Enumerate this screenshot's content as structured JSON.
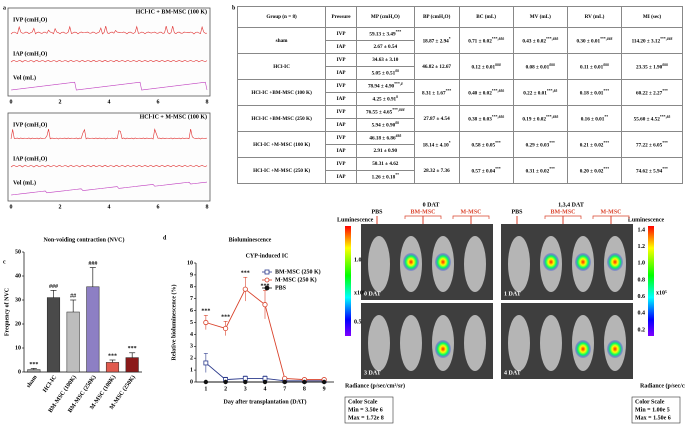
{
  "panel_a": {
    "letter": "a",
    "traces": [
      {
        "title": "HCl-IC + BM-MSC (100 K)",
        "labels": [
          "IVP (cmH₂O)",
          "IAP (cmH₂O)",
          "Vol (mL)"
        ]
      },
      {
        "title": "HCl-IC + M-MSC (100 K)",
        "labels": [
          "IVP (cmH₂O)",
          "IAP (cmH₂O)",
          "Vol (mL)"
        ]
      }
    ],
    "xticks": [
      0,
      2,
      4,
      6,
      8
    ]
  },
  "panel_b": {
    "letter": "b",
    "table": {
      "header": [
        "Group (n = 8)",
        "Pressure",
        "MP (cmH₂O)",
        "BP (cmH₂O)",
        "BC (mL)",
        "MV (mL)",
        "RV (mL)",
        "MI (sec)"
      ],
      "groups": [
        {
          "name": "sham",
          "rows": [
            {
              "pressure": "IVP",
              "mp": {
                "v": "59.13 ± 3.49",
                "sup": "***"
              }
            },
            {
              "pressure": "IAP",
              "mp": "2.67 ± 0.54"
            }
          ],
          "shared": [
            {
              "v": "18.87 ± 2.94",
              "sup": "*"
            },
            {
              "v": "0.71 ± 0.02",
              "sup": "***,###"
            },
            {
              "v": "0.43 ± 0.02",
              "sup": "***,###"
            },
            {
              "v": "0.30 ± 0.01",
              "sup": "***,###"
            },
            {
              "v": "114.20 ± 3.12",
              "sup": "***,###"
            }
          ]
        },
        {
          "name": "HCl-IC",
          "rows": [
            {
              "pressure": "IVP",
              "mp": "34.63 ± 3.10"
            },
            {
              "pressure": "IAP",
              "mp": {
                "v": "5.05 ± 0.51",
                "sup": "##"
              }
            }
          ],
          "shared": [
            "46.82 ± 12.67",
            {
              "v": "0.12 ± 0.01",
              "sup": "###"
            },
            {
              "v": "0.08 ± 0.01",
              "sup": "###"
            },
            {
              "v": "0.11 ± 0.01",
              "sup": "###"
            },
            {
              "v": "23.35 ± 1.90",
              "sup": "###"
            }
          ]
        },
        {
          "name": "HCl-IC +BM-MSC (100 K)",
          "rows": [
            {
              "pressure": "IVP",
              "mp": {
                "v": "78.94 ± 4.90",
                "sup": "***,#"
              }
            },
            {
              "pressure": "IAP",
              "mp": {
                "v": "4.25 ± 0.91",
                "sup": "#"
              }
            }
          ],
          "shared": [
            {
              "v": "8.31 ± 1.67",
              "sup": "***"
            },
            {
              "v": "0.40 ± 0.02",
              "sup": "***,###"
            },
            {
              "v": "0.22 ± 0.01",
              "sup": "***,##"
            },
            {
              "v": "0.18 ± 0.01",
              "sup": "***"
            },
            {
              "v": "60.22 ± 2.27",
              "sup": "***"
            }
          ]
        },
        {
          "name": "HCl-IC +BM-MSC (250 K)",
          "rows": [
            {
              "pressure": "IVP",
              "mp": {
                "v": "76.55 ± 4.65",
                "sup": "***,###"
              }
            },
            {
              "pressure": "IAP",
              "mp": {
                "v": "5.94 ± 0.90",
                "sup": "##"
              }
            }
          ],
          "shared": [
            "27.87 ± 4.54",
            {
              "v": "0.38 ± 0.03",
              "sup": "***,###"
            },
            {
              "v": "0.19 ± 0.02",
              "sup": "***,###"
            },
            {
              "v": "0.16 ± 0.01",
              "sup": "**"
            },
            {
              "v": "55.60 ± 4.52",
              "sup": "***,##"
            }
          ]
        },
        {
          "name": "HCl-IC +M-MSC (100 K)",
          "rows": [
            {
              "pressure": "IVP",
              "mp": {
                "v": "46.18 ± 6.86",
                "sup": "###"
              }
            },
            {
              "pressure": "IAP",
              "mp": "2.91 ± 0.90"
            }
          ],
          "shared": [
            {
              "v": "18.14 ± 4.10",
              "sup": "*"
            },
            {
              "v": "0.58 ± 0.05",
              "sup": "***"
            },
            {
              "v": "0.29 ± 0.03",
              "sup": "***"
            },
            {
              "v": "0.21 ± 0.02",
              "sup": "***"
            },
            {
              "v": "77.22 ± 6.05",
              "sup": "***"
            }
          ]
        },
        {
          "name": "HCl-IC +M-MSC (250 K)",
          "rows": [
            {
              "pressure": "IVP",
              "mp": "50.31 ± 4.62"
            },
            {
              "pressure": "IAP",
              "mp": {
                "v": "1.26 ± 0.18",
                "sup": "**"
              }
            }
          ],
          "shared": [
            "28.32 ± 7.36",
            {
              "v": "0.57 ± 0.04",
              "sup": "***"
            },
            {
              "v": "0.31 ± 0.02",
              "sup": "***"
            },
            {
              "v": "0.20 ± 0.02",
              "sup": "***"
            },
            {
              "v": "74.62 ± 5.94",
              "sup": "***"
            }
          ]
        }
      ]
    }
  },
  "chart_data": [
    {
      "type": "bar",
      "panel_label": "c",
      "title": "Non-voiding contraction (NVC)",
      "y_label": "Frequency of NVC",
      "categories": [
        "sham",
        "HCl-IC",
        "BM-MSC (100K)",
        "BM-MSC (250K)",
        "M-MSC (100K)",
        "M-MSC (250K)"
      ],
      "values": [
        1,
        31,
        25,
        35.5,
        4,
        6
      ],
      "errors": [
        0.5,
        3,
        5,
        8,
        1,
        2
      ],
      "significance": [
        "***",
        "###",
        "##",
        "###",
        "***",
        "***"
      ],
      "colors": [
        "#9e9e9e",
        "#4a4a4a",
        "#bdbdbd",
        "#8d7fc4",
        "#e05a4e",
        "#8b1a1a"
      ],
      "ylim": [
        0,
        50
      ],
      "yticks": [
        0,
        10,
        20,
        30,
        40,
        50
      ]
    },
    {
      "type": "line",
      "panel_label": "d",
      "title": "Bioluminescence",
      "subtitle": "CYP-induced IC",
      "x_label": "Day after transplantation (DAT)",
      "y_label": "Relative bioluminescence (%)",
      "categories": [
        "1",
        "2",
        "3",
        "4",
        "7",
        "8",
        "9"
      ],
      "series": [
        {
          "name": "BM-MSC (250 K)",
          "color": "#2b3a8c",
          "marker": "square",
          "values": [
            1.6,
            0.2,
            0.3,
            0.3,
            0.1,
            0.1,
            0.1
          ],
          "errors": [
            0.8,
            0.2,
            0.2,
            0.2,
            0.1,
            0.1,
            0.1
          ]
        },
        {
          "name": "M-MSC (250 K)",
          "color": "#d9422b",
          "marker": "circle",
          "values": [
            5.0,
            4.5,
            7.8,
            6.5,
            0.3,
            0.2,
            0.2
          ],
          "errors": [
            0.6,
            0.6,
            1.0,
            1.2,
            0.1,
            0.1,
            0.1
          ]
        },
        {
          "name": "PBS",
          "color": "#111111",
          "marker": "dot",
          "values": [
            0,
            0,
            0,
            0,
            0,
            0,
            0
          ]
        }
      ],
      "significance": [
        "***",
        "***",
        "***",
        "***",
        null,
        null,
        null
      ],
      "legend": "top-right",
      "ylim": [
        0,
        10
      ],
      "yticks": [
        0,
        1,
        2,
        3,
        4,
        5,
        6,
        7,
        8,
        9,
        10
      ]
    }
  ],
  "panel_e": {
    "left": {
      "title": "0 DAT",
      "scale_title": "Luminescence",
      "groups": [
        "PBS",
        "BM-MSC",
        "M-MSC"
      ],
      "image_labels": [
        "0 DAT",
        "3 DAT"
      ],
      "colorbar_ticks": [
        "1.0",
        "0.5"
      ],
      "multiplier": "x10⁶",
      "radiance": "Radiance (p/sec/cm²/sr)",
      "color_scale": [
        "Color Scale",
        "Min = 3.50e 6",
        "Max = 1.72e 8"
      ]
    },
    "right": {
      "title": "1,3,4 DAT",
      "scale_title": "Luminescence",
      "groups": [
        "PBS",
        "BM-MSC",
        "M-MSC"
      ],
      "image_labels": [
        "1 DAT",
        "4 DAT"
      ],
      "colorbar_ticks": [
        "1.4",
        "1.2",
        "1.0",
        "0.8",
        "0.6",
        "0.4",
        "0.2"
      ],
      "multiplier": "x10⁵",
      "radiance": "Radiance (p/sec/cm²/sr)",
      "color_scale": [
        "Color Scale",
        "Min = 1.00e 5",
        "Max = 1.50e 6"
      ]
    }
  }
}
